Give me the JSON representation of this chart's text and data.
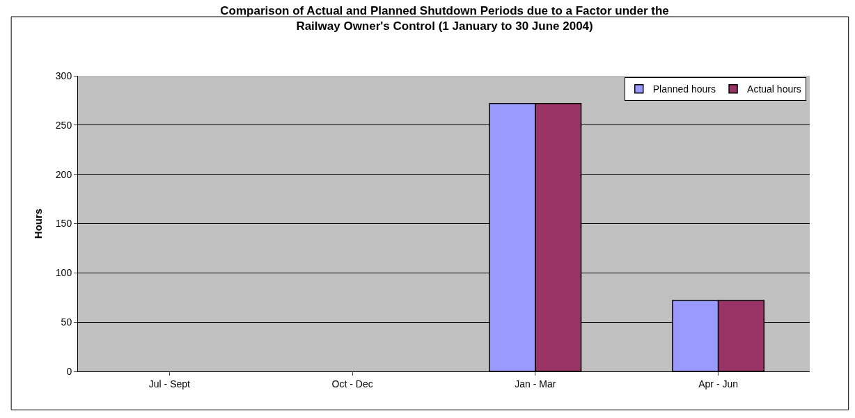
{
  "chart_data": {
    "type": "bar",
    "title": "Comparison of Actual and Planned Shutdown Periods due to a Factor under the Railway Owner's Control (1 January to 30 June 2004)",
    "ylabel": "Hours",
    "categories": [
      "Jul - Sept",
      "Oct - Dec",
      "Jan - Mar",
      "Apr - Jun"
    ],
    "series": [
      {
        "name": "Planned hours",
        "color": "#9999ff",
        "values": [
          null,
          null,
          272,
          72
        ]
      },
      {
        "name": "Actual hours",
        "color": "#993366",
        "values": [
          null,
          null,
          272,
          72
        ]
      }
    ],
    "ylim": [
      0,
      300
    ],
    "yticks": [
      0,
      50,
      100,
      150,
      200,
      250,
      300
    ],
    "grid": "y",
    "legend": "top right"
  }
}
